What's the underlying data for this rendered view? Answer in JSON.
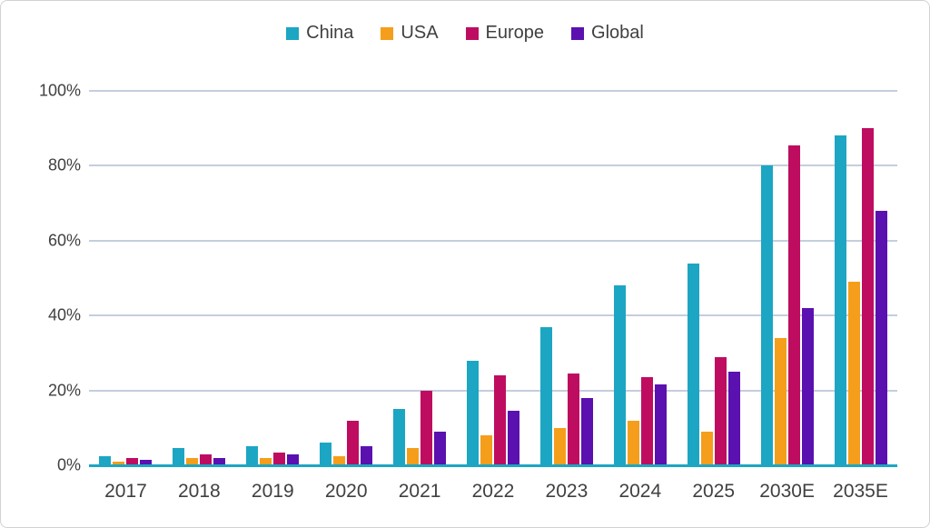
{
  "chart_data": {
    "type": "bar",
    "title": "",
    "xlabel": "",
    "ylabel": "",
    "categories": [
      "2017",
      "2018",
      "2019",
      "2020",
      "2021",
      "2022",
      "2023",
      "2024",
      "2025",
      "2030E",
      "2035E"
    ],
    "series": [
      {
        "name": "China",
        "color": "#1ca6c3",
        "values": [
          2.5,
          4.5,
          5,
          6,
          15,
          28,
          37,
          48,
          54,
          80,
          88
        ]
      },
      {
        "name": "USA",
        "color": "#f59e1b",
        "values": [
          1,
          2,
          2,
          2.5,
          4.5,
          8,
          10,
          12,
          9,
          34,
          49
        ]
      },
      {
        "name": "Europe",
        "color": "#be0d60",
        "values": [
          2,
          3,
          3.5,
          12,
          20,
          24,
          24.5,
          23.5,
          29,
          85.5,
          90
        ]
      },
      {
        "name": "Global",
        "color": "#5a11b0",
        "values": [
          1.5,
          2,
          3,
          5,
          9,
          14.5,
          18,
          21.5,
          25,
          42,
          68
        ]
      }
    ],
    "ylim": [
      0,
      100
    ],
    "ytick_labels": [
      "0%",
      "20%",
      "40%",
      "60%",
      "80%",
      "100%"
    ],
    "grid": true,
    "legend_position": "top-center",
    "axis_line_color": "#1ca6c3",
    "gridline_color": "#c4cede"
  }
}
